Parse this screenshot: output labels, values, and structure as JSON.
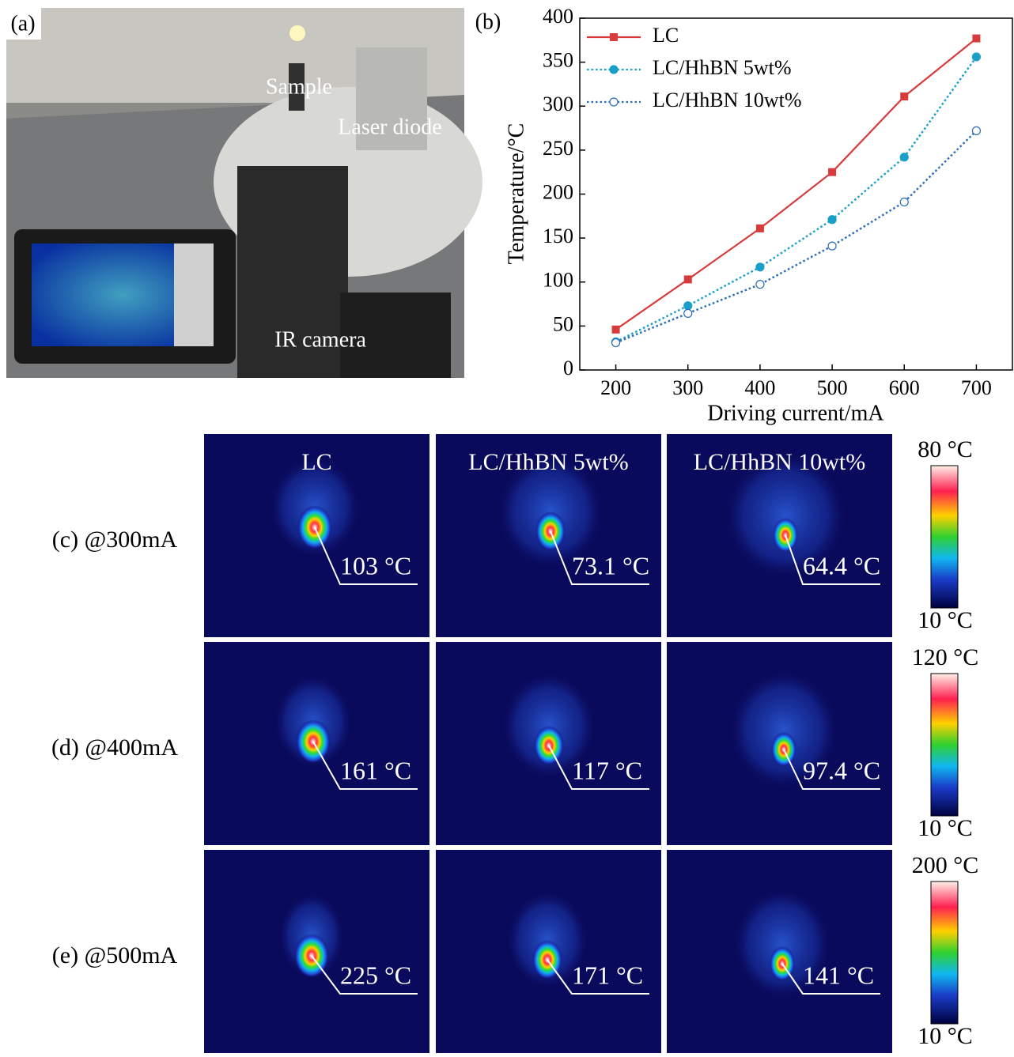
{
  "panel_a": {
    "label": "(a)",
    "annotations": [
      "Sample",
      "Laser diode",
      "IR camera"
    ]
  },
  "chart_data": {
    "type": "line",
    "panel_label": "(b)",
    "x": [
      200,
      300,
      400,
      500,
      600,
      700
    ],
    "series": [
      {
        "name": "LC",
        "color": "#d83b3b",
        "marker": "square",
        "dotted": false,
        "values": [
          46,
          103,
          161,
          225,
          311,
          377
        ]
      },
      {
        "name": "LC/HhBN 5wt%",
        "color": "#1a9fc8",
        "marker": "circle",
        "dotted": true,
        "values": [
          32,
          73.1,
          117,
          171,
          242,
          356
        ]
      },
      {
        "name": "LC/HhBN 10wt%",
        "color": "#2b6cb8",
        "marker": "open-circle",
        "dotted": true,
        "values": [
          31,
          64.4,
          97.4,
          141,
          191,
          272
        ]
      }
    ],
    "xlabel": "Driving current/mA",
    "ylabel": "Temperature/°C",
    "xlim": [
      150,
      750
    ],
    "ylim": [
      0,
      400
    ],
    "xticks": [
      200,
      300,
      400,
      500,
      600,
      700
    ],
    "yticks": [
      0,
      50,
      100,
      150,
      200,
      250,
      300,
      350,
      400
    ],
    "legend": "upper left"
  },
  "thermal": {
    "columns": [
      "LC",
      "LC/HhBN 5wt%",
      "LC/HhBN 10wt%"
    ],
    "rows": [
      {
        "label": "(c) @300mA",
        "temperatures": [
          "103 °C",
          "73.1 °C",
          "64.4 °C"
        ],
        "scale_max": "80 °C",
        "scale_min": "10 °C"
      },
      {
        "label": "(d) @400mA",
        "temperatures": [
          "161 °C",
          "117 °C",
          "97.4 °C"
        ],
        "scale_max": "120 °C",
        "scale_min": "10 °C"
      },
      {
        "label": "(e) @500mA",
        "temperatures": [
          "225 °C",
          "171 °C",
          "141 °C"
        ],
        "scale_max": "200 °C",
        "scale_min": "10 °C"
      }
    ]
  }
}
